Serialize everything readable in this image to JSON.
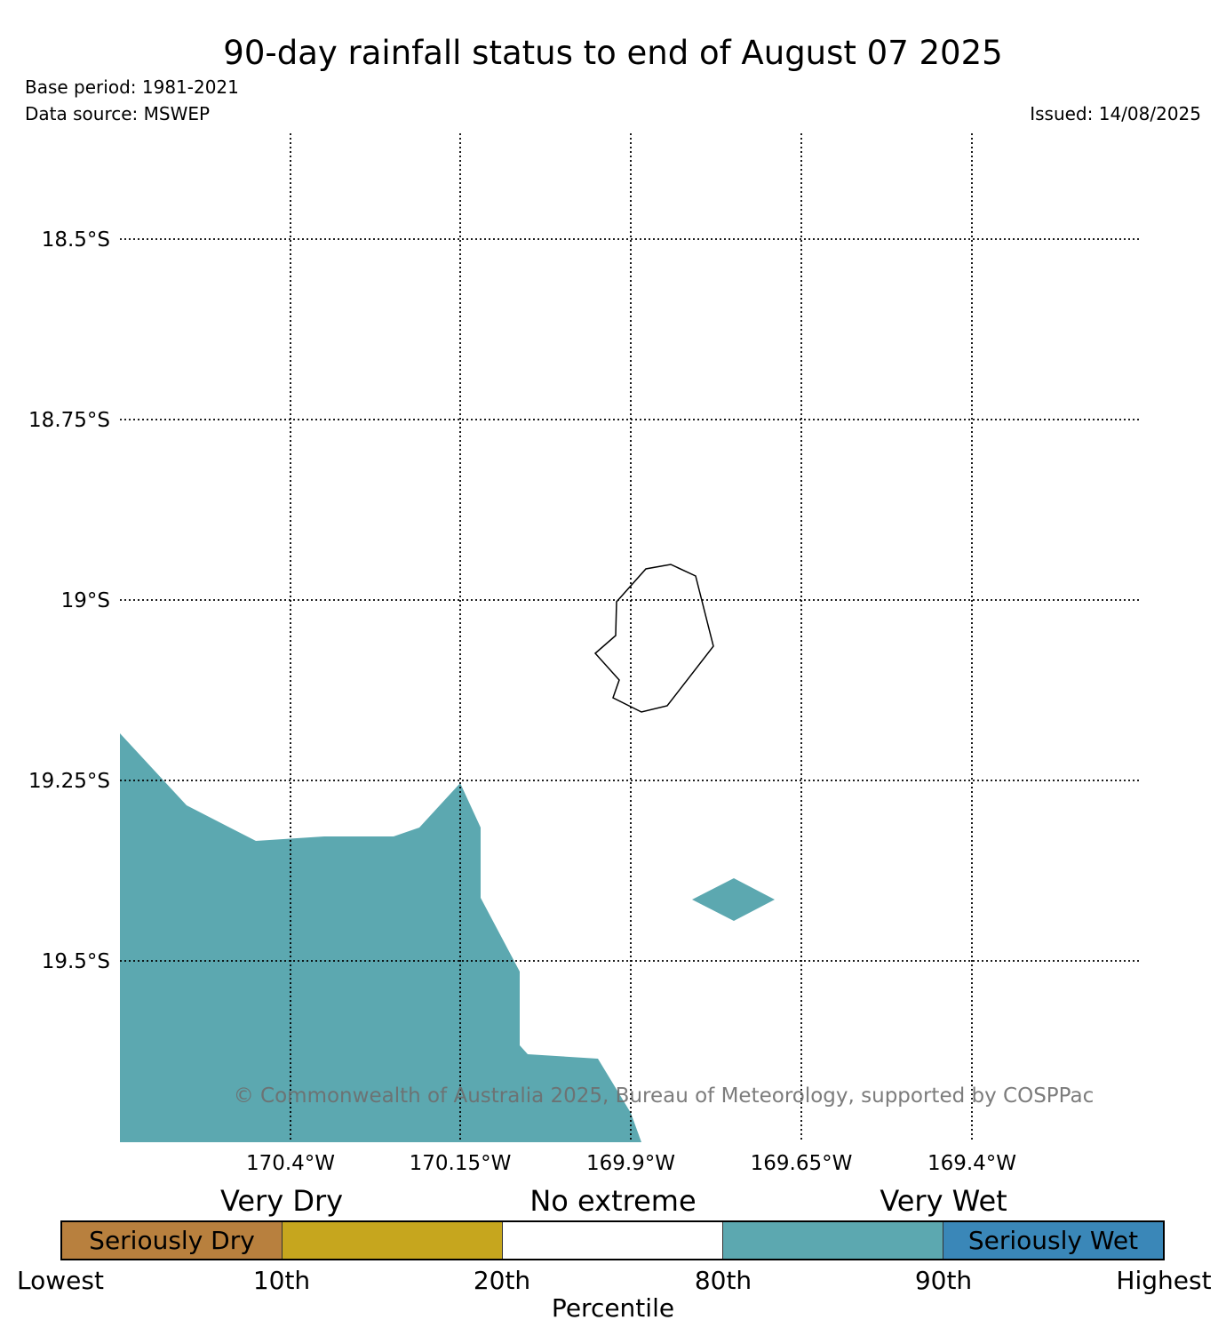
{
  "header": {
    "title": "90-day rainfall status to end of August 07 2025",
    "base_period": "Base period: 1981-2021",
    "data_source": "Data source: MSWEP",
    "issued": "Issued: 14/08/2025"
  },
  "map": {
    "lat_labels": [
      "18.5°S",
      "18.75°S",
      "19°S",
      "19.25°S",
      "19.5°S"
    ],
    "lon_labels": [
      "170.4°W",
      "170.15°W",
      "169.9°W",
      "169.65°W",
      "169.4°W"
    ],
    "wet_color": "#5ca8b0",
    "copyright": "© Commonwealth of Australia 2025, Bureau of Meteorology, supported by COSPPac",
    "regions": [
      {
        "category": "very-wet",
        "description": "large area in south-west of map"
      },
      {
        "category": "very-wet",
        "description": "small diamond south-east of island"
      }
    ]
  },
  "legend": {
    "groups": [
      "Very Dry",
      "No extreme",
      "Very Wet"
    ],
    "segments": [
      {
        "label": "Seriously Dry",
        "color": "#b8803e"
      },
      {
        "label": "",
        "color": "#c6a61e"
      },
      {
        "label": "",
        "color": "#ffffff"
      },
      {
        "label": "",
        "color": "#5ca8b0"
      },
      {
        "label": "Seriously Wet",
        "color": "#3a87b8"
      }
    ],
    "ticks": [
      "Lowest",
      "10th",
      "20th",
      "80th",
      "90th",
      "Highest"
    ],
    "axis_title": "Percentile"
  }
}
